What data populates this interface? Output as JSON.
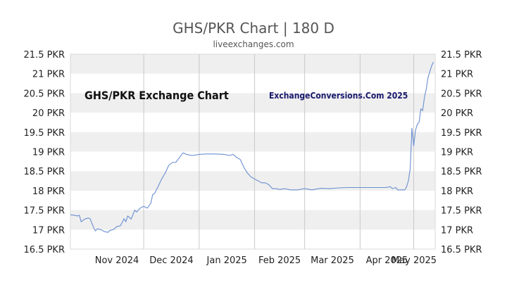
{
  "chart_data": {
    "type": "line",
    "title": "GHS/PKR Chart | 180 D",
    "subtitle": "liveexchanges.com",
    "watermark_left": "GHS/PKR Exchange Chart",
    "watermark_right": "ExchangeConversions.Com 2025",
    "x_ticks": [
      "Nov 2024",
      "Dec 2024",
      "Jan 2025",
      "Feb 2025",
      "Mar 2025",
      "Apr 2025",
      "May 2025"
    ],
    "y_ticks": [
      "16.5 PKR",
      "17 PKR",
      "17.5 PKR",
      "18 PKR",
      "18.5 PKR",
      "19 PKR",
      "19.5 PKR",
      "20 PKR",
      "20.5 PKR",
      "21 PKR",
      "21.5 PKR"
    ],
    "ylim": [
      16.5,
      21.5
    ],
    "x_range": [
      "2024-10-21",
      "2025-05-13"
    ],
    "grid": "banded horizontal, vertical month lines",
    "colors": {
      "line": "#6a8fd0",
      "band": "#efefef",
      "grid": "#c8c8c8"
    },
    "series": [
      {
        "points": [
          [
            "2024-10-21",
            17.38
          ],
          [
            "2024-10-23",
            17.37
          ],
          [
            "2024-10-25",
            17.35
          ],
          [
            "2024-10-26",
            17.37
          ],
          [
            "2024-10-27",
            17.2
          ],
          [
            "2024-10-29",
            17.27
          ],
          [
            "2024-10-31",
            17.3
          ],
          [
            "2024-11-01",
            17.28
          ],
          [
            "2024-11-03",
            17.05
          ],
          [
            "2024-11-04",
            16.97
          ],
          [
            "2024-11-05",
            17.02
          ],
          [
            "2024-11-07",
            17.0
          ],
          [
            "2024-11-09",
            16.95
          ],
          [
            "2024-11-11",
            16.93
          ],
          [
            "2024-11-12",
            16.98
          ],
          [
            "2024-11-14",
            17.0
          ],
          [
            "2024-11-16",
            17.08
          ],
          [
            "2024-11-18",
            17.1
          ],
          [
            "2024-11-20",
            17.28
          ],
          [
            "2024-11-21",
            17.2
          ],
          [
            "2024-11-22",
            17.35
          ],
          [
            "2024-11-24",
            17.27
          ],
          [
            "2024-11-26",
            17.5
          ],
          [
            "2024-11-27",
            17.45
          ],
          [
            "2024-11-29",
            17.55
          ],
          [
            "2024-12-01",
            17.6
          ],
          [
            "2024-12-03",
            17.55
          ],
          [
            "2024-12-05",
            17.68
          ],
          [
            "2024-12-06",
            17.9
          ],
          [
            "2024-12-07",
            17.92
          ],
          [
            "2024-12-09",
            18.1
          ],
          [
            "2024-12-11",
            18.3
          ],
          [
            "2024-12-13",
            18.45
          ],
          [
            "2024-12-15",
            18.65
          ],
          [
            "2024-12-17",
            18.72
          ],
          [
            "2024-12-19",
            18.73
          ],
          [
            "2024-12-21",
            18.85
          ],
          [
            "2024-12-23",
            18.97
          ],
          [
            "2024-12-25",
            18.93
          ],
          [
            "2024-12-28",
            18.9
          ],
          [
            "2025-01-01",
            18.93
          ],
          [
            "2025-01-05",
            18.94
          ],
          [
            "2025-01-10",
            18.94
          ],
          [
            "2025-01-15",
            18.93
          ],
          [
            "2025-01-18",
            18.9
          ],
          [
            "2025-01-20",
            18.93
          ],
          [
            "2025-01-22",
            18.85
          ],
          [
            "2025-01-24",
            18.8
          ],
          [
            "2025-01-26",
            18.6
          ],
          [
            "2025-01-28",
            18.45
          ],
          [
            "2025-01-30",
            18.35
          ],
          [
            "2025-02-01",
            18.3
          ],
          [
            "2025-02-03",
            18.25
          ],
          [
            "2025-02-05",
            18.2
          ],
          [
            "2025-02-07",
            18.2
          ],
          [
            "2025-02-09",
            18.15
          ],
          [
            "2025-02-11",
            18.05
          ],
          [
            "2025-02-13",
            18.05
          ],
          [
            "2025-02-15",
            18.03
          ],
          [
            "2025-02-18",
            18.05
          ],
          [
            "2025-02-21",
            18.02
          ],
          [
            "2025-02-25",
            18.02
          ],
          [
            "2025-03-01",
            18.05
          ],
          [
            "2025-03-05",
            18.02
          ],
          [
            "2025-03-10",
            18.06
          ],
          [
            "2025-03-15",
            18.05
          ],
          [
            "2025-03-20",
            18.07
          ],
          [
            "2025-03-25",
            18.08
          ],
          [
            "2025-04-01",
            18.08
          ],
          [
            "2025-04-08",
            18.08
          ],
          [
            "2025-04-15",
            18.08
          ],
          [
            "2025-04-18",
            18.1
          ],
          [
            "2025-04-19",
            18.05
          ],
          [
            "2025-04-21",
            18.08
          ],
          [
            "2025-04-22",
            18.02
          ],
          [
            "2025-04-26",
            18.02
          ],
          [
            "2025-04-27",
            18.1
          ],
          [
            "2025-04-28",
            18.25
          ],
          [
            "2025-04-29",
            18.55
          ],
          [
            "2025-04-30",
            19.6
          ],
          [
            "2025-05-01",
            19.15
          ],
          [
            "2025-05-02",
            19.55
          ],
          [
            "2025-05-03",
            19.7
          ],
          [
            "2025-05-04",
            19.75
          ],
          [
            "2025-05-05",
            20.1
          ],
          [
            "2025-05-06",
            20.05
          ],
          [
            "2025-05-07",
            20.4
          ],
          [
            "2025-05-08",
            20.6
          ],
          [
            "2025-05-09",
            20.9
          ],
          [
            "2025-05-10",
            21.05
          ],
          [
            "2025-05-11",
            21.2
          ],
          [
            "2025-05-12",
            21.3
          ]
        ]
      }
    ]
  }
}
